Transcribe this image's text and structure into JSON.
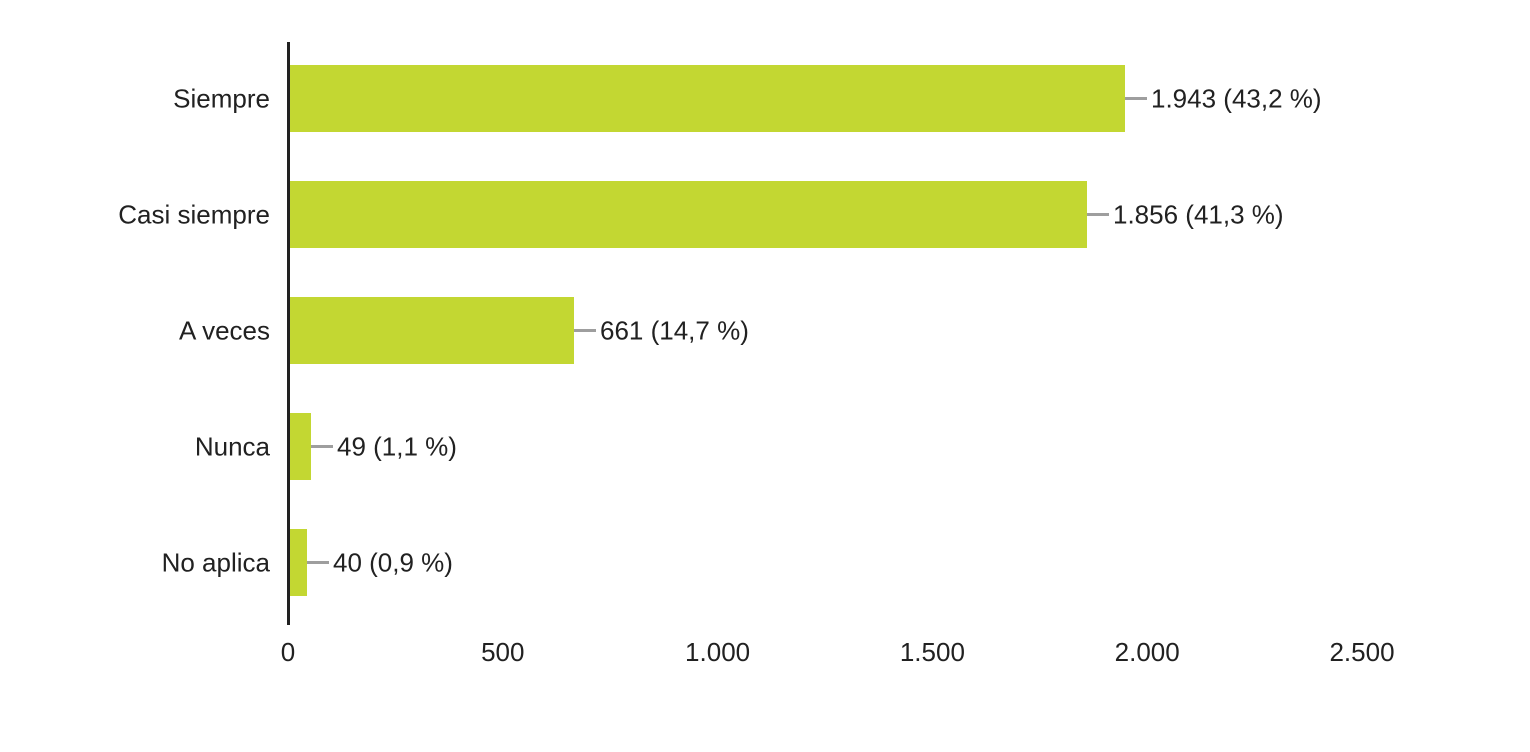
{
  "chart_data": {
    "type": "bar",
    "orientation": "horizontal",
    "title": "",
    "xlabel": "",
    "ylabel": "",
    "categories": [
      "Siempre",
      "Casi siempre",
      "A veces",
      "Nunca",
      "No aplica"
    ],
    "values": [
      1943,
      1856,
      661,
      49,
      40
    ],
    "percents": [
      43.2,
      41.3,
      14.7,
      1.1,
      0.9
    ],
    "value_labels": [
      "1.943 (43,2 %)",
      "1.856 (41,3 %)",
      "661 (14,7 %)",
      "49 (1,1 %)",
      "40 (0,9 %)"
    ],
    "xlim": [
      0,
      2500
    ],
    "x_ticks": [
      0,
      500,
      1000,
      1500,
      2000,
      2500
    ],
    "x_tick_labels": [
      "0",
      "500",
      "1.000",
      "1.500",
      "2.000",
      "2.500"
    ],
    "grid": false,
    "legend": "none",
    "colors": {
      "bar": "#c3d732",
      "callout": "#9e9e9e",
      "axis": "#212121",
      "text": "#212121",
      "background": "#ffffff"
    }
  }
}
